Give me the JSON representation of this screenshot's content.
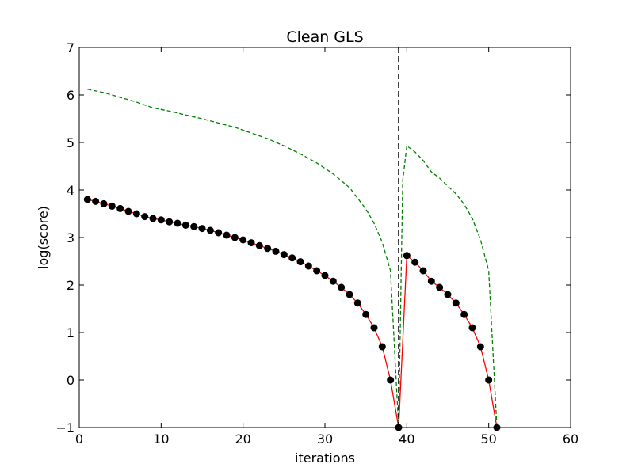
{
  "chart_data": {
    "type": "line",
    "title": "Clean GLS",
    "xlabel": "iterations",
    "ylabel": "log(score)",
    "xlim": [
      0,
      60
    ],
    "ylim": [
      -1,
      7
    ],
    "xticks": [
      0,
      10,
      20,
      30,
      40,
      50,
      60
    ],
    "yticks": [
      -1,
      0,
      1,
      2,
      3,
      4,
      5,
      6,
      7
    ],
    "xtick_labels": [
      "0",
      "10",
      "20",
      "30",
      "40",
      "50",
      "60"
    ],
    "ytick_labels": [
      "−1",
      "0",
      "1",
      "2",
      "3",
      "4",
      "5",
      "6",
      "7"
    ],
    "grid": false,
    "legend": "none",
    "vline": {
      "x": 39,
      "style": "dashed",
      "color": "#000000"
    },
    "series": [
      {
        "style": "solid-with-markers",
        "line_color": "#ff0000",
        "marker_color": "#000000",
        "x": [
          1,
          2,
          3,
          4,
          5,
          6,
          7,
          8,
          9,
          10,
          11,
          12,
          13,
          14,
          15,
          16,
          17,
          18,
          19,
          20,
          21,
          22,
          23,
          24,
          25,
          26,
          27,
          28,
          29,
          30,
          31,
          32,
          33,
          34,
          35,
          36,
          37,
          38,
          39,
          40,
          41,
          42,
          43,
          44,
          45,
          46,
          47,
          48,
          49,
          50,
          51
        ],
        "y": [
          3.8,
          3.76,
          3.71,
          3.66,
          3.61,
          3.55,
          3.5,
          3.44,
          3.4,
          3.37,
          3.33,
          3.3,
          3.26,
          3.23,
          3.19,
          3.15,
          3.1,
          3.05,
          3.0,
          2.95,
          2.89,
          2.83,
          2.77,
          2.71,
          2.64,
          2.57,
          2.49,
          2.4,
          2.3,
          2.2,
          2.08,
          1.95,
          1.8,
          1.62,
          1.38,
          1.1,
          0.7,
          0.0,
          -1.0,
          2.62,
          2.48,
          2.3,
          2.08,
          1.95,
          1.8,
          1.62,
          1.38,
          1.1,
          0.7,
          0.0,
          -1.0
        ]
      },
      {
        "style": "dashed",
        "line_color": "#008000",
        "x": [
          1,
          3,
          5,
          7,
          9,
          11,
          13,
          15,
          17,
          19,
          21,
          23,
          25,
          27,
          29,
          31,
          33,
          35,
          36,
          37,
          38,
          39,
          39.5,
          40,
          41,
          42,
          43,
          44,
          45,
          46,
          47,
          48,
          49,
          50,
          51
        ],
        "y": [
          6.12,
          6.05,
          5.95,
          5.85,
          5.73,
          5.66,
          5.58,
          5.5,
          5.41,
          5.32,
          5.2,
          5.08,
          4.93,
          4.76,
          4.57,
          4.34,
          4.05,
          3.6,
          3.3,
          2.9,
          2.3,
          -1.0,
          4.2,
          4.93,
          4.8,
          4.62,
          4.38,
          4.25,
          4.08,
          3.92,
          3.7,
          3.4,
          2.95,
          2.3,
          -1.0
        ]
      }
    ]
  }
}
